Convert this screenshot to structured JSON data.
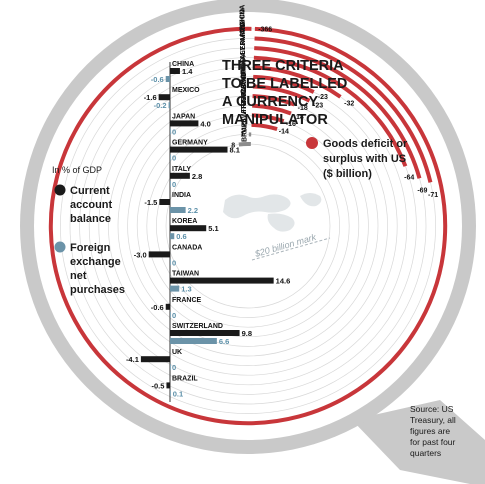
{
  "title_lines": [
    "THREE CRITERIA",
    "TO BE LABELLED",
    "A CURRENCY",
    "MANIPULATOR"
  ],
  "legend": {
    "unit_label": "In % of GDP",
    "current_lines": [
      "Current",
      "account",
      "balance"
    ],
    "fx_lines": [
      "Foreign",
      "exchange",
      "net",
      "purchases"
    ],
    "goods_lines": [
      "Goods deficit or",
      "surplus with US",
      "($ billion)"
    ]
  },
  "colors": {
    "current": "#1a1a1a",
    "fx": "#6b93a8",
    "goods": "#c8363a",
    "ring": "#c9c9c9"
  },
  "source_lines": [
    "Source: US",
    "Treasury, all",
    "figures are",
    "for past four",
    "quarters"
  ],
  "scale_mark": "$20 billion mark",
  "chart_data": [
    {
      "type": "bar",
      "title": "",
      "unit": "% of GDP",
      "categories": [
        "CHINA",
        "MEXICO",
        "JAPAN",
        "GERMANY",
        "ITALY",
        "INDIA",
        "KOREA",
        "CANADA",
        "TAIWAN",
        "FRANCE",
        "SWITZERLAND",
        "UK",
        "BRAZIL"
      ],
      "series": [
        {
          "name": "Current account balance",
          "values": [
            1.4,
            -1.6,
            4.0,
            8.1,
            2.8,
            -1.5,
            5.1,
            -3.0,
            14.6,
            -0.6,
            9.8,
            -4.1,
            -0.5
          ],
          "labels": [
            "1.4",
            "-1.6",
            "4.0",
            "8.1",
            "2.8",
            "-1.5",
            "5.1",
            "-3.0",
            "14.6",
            "-0.6",
            "9.8",
            "-4.1",
            "-0.5"
          ]
        },
        {
          "name": "Foreign exchange net purchases",
          "values": [
            -0.6,
            -0.2,
            0,
            0,
            0,
            2.2,
            0.6,
            0,
            1.3,
            0,
            6.6,
            0,
            0.1
          ],
          "labels": [
            "-0.6",
            "-0.2",
            "0",
            "0",
            "0",
            "2.2",
            "0.6",
            "0",
            "1.3",
            "0",
            "6.6",
            "0",
            "0.1"
          ]
        }
      ]
    },
    {
      "type": "bar",
      "title": "",
      "unit": "$ billion",
      "categories": [
        "BRAZIL",
        "UK",
        "SWITZERLAND",
        "FRANCE",
        "TAIWAN",
        "CANADA",
        "KOREA",
        "INDIA",
        "ITALY",
        "GERMANY",
        "JAPAN",
        "MEXICO",
        "CHINA"
      ],
      "series": [
        {
          "name": "Goods deficit or surplus with US",
          "values": [
            8,
            1,
            -14,
            -16,
            -18,
            -18,
            -23,
            -23,
            -32,
            -64,
            -69,
            -71,
            -366
          ],
          "labels": [
            "8",
            "1",
            "-14",
            "-16",
            "-18",
            "-18",
            "-23",
            "-23",
            "-32",
            "-64",
            "-69",
            "-71",
            "-366"
          ]
        }
      ]
    }
  ]
}
